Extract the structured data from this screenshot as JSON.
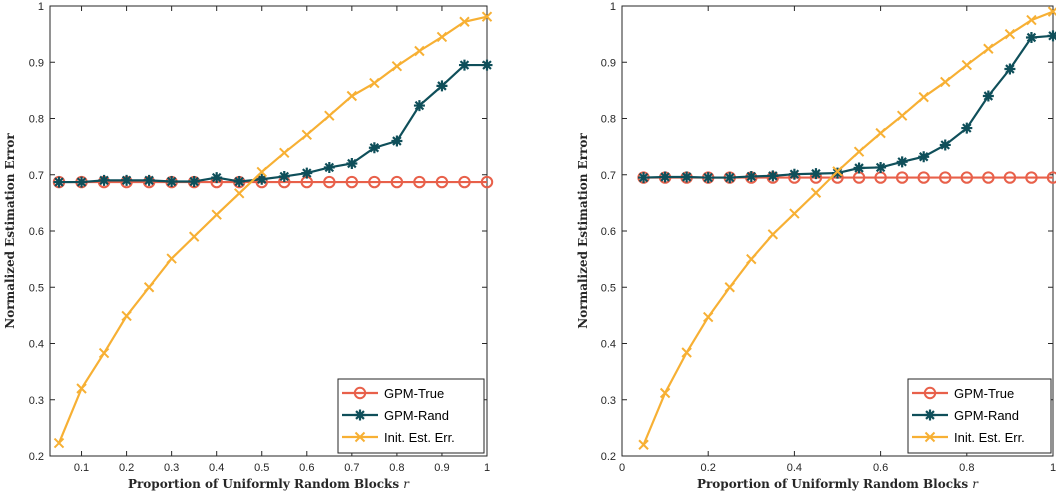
{
  "chart_data": [
    {
      "type": "line",
      "title": "",
      "xlabel": "Proportion of Uniformly Random Blocks",
      "xlabel_var": "r",
      "ylabel": "Normalized Estimation Error",
      "xlim": [
        0.03,
        1.0
      ],
      "ylim": [
        0.2,
        1.0
      ],
      "xticks": [
        0.1,
        0.2,
        0.3,
        0.4,
        0.5,
        0.6,
        0.7,
        0.8,
        0.9,
        1
      ],
      "xtick_labels": [
        "0.1",
        "0.2",
        "0.3",
        "0.4",
        "0.5",
        "0.6",
        "0.7",
        "0.8",
        "0.9",
        "1"
      ],
      "yticks": [
        0.2,
        0.3,
        0.4,
        0.5,
        0.6,
        0.7,
        0.8,
        0.9,
        1
      ],
      "ytick_labels": [
        "0.2",
        "0.3",
        "0.4",
        "0.5",
        "0.6",
        "0.7",
        "0.8",
        "0.9",
        "1"
      ],
      "grid": false,
      "legend_position": "bottom-right",
      "x": [
        0.05,
        0.1,
        0.15,
        0.2,
        0.25,
        0.3,
        0.35,
        0.4,
        0.45,
        0.5,
        0.55,
        0.6,
        0.65,
        0.7,
        0.75,
        0.8,
        0.85,
        0.9,
        0.95,
        1.0
      ],
      "series": [
        {
          "name": "GPM-True",
          "marker": "circle",
          "color": "#e8604a",
          "values": [
            0.687,
            0.687,
            0.687,
            0.687,
            0.687,
            0.687,
            0.687,
            0.687,
            0.687,
            0.687,
            0.687,
            0.687,
            0.687,
            0.687,
            0.687,
            0.687,
            0.687,
            0.687,
            0.687,
            0.687
          ]
        },
        {
          "name": "GPM-Rand",
          "marker": "star",
          "color": "#0f4f5a",
          "values": [
            0.687,
            0.687,
            0.69,
            0.69,
            0.69,
            0.688,
            0.688,
            0.695,
            0.688,
            0.692,
            0.697,
            0.703,
            0.713,
            0.72,
            0.748,
            0.76,
            0.823,
            0.858,
            0.895,
            0.895
          ]
        },
        {
          "name": "Init. Est. Err.",
          "marker": "x",
          "color": "#f7b034",
          "values": [
            0.223,
            0.32,
            0.383,
            0.449,
            0.5,
            0.551,
            0.59,
            0.629,
            0.667,
            0.705,
            0.739,
            0.771,
            0.805,
            0.84,
            0.863,
            0.893,
            0.92,
            0.945,
            0.972,
            0.981
          ]
        }
      ]
    },
    {
      "type": "line",
      "title": "",
      "xlabel": "Proportion of Uniformly Random Blocks",
      "xlabel_var": "r",
      "ylabel": "Normalized Estimation Error",
      "xlim": [
        0,
        1.0
      ],
      "ylim": [
        0.2,
        1.0
      ],
      "xticks": [
        0,
        0.2,
        0.4,
        0.6,
        0.8,
        1
      ],
      "xtick_labels": [
        "0",
        "0.2",
        "0.4",
        "0.6",
        "0.8",
        "1"
      ],
      "yticks": [
        0.2,
        0.3,
        0.4,
        0.5,
        0.6,
        0.7,
        0.8,
        0.9,
        1
      ],
      "ytick_labels": [
        "0.2",
        "0.3",
        "0.4",
        "0.5",
        "0.6",
        "0.7",
        "0.8",
        "0.9",
        "1"
      ],
      "grid": false,
      "legend_position": "bottom-right",
      "x": [
        0.05,
        0.1,
        0.15,
        0.2,
        0.25,
        0.3,
        0.35,
        0.4,
        0.45,
        0.5,
        0.55,
        0.6,
        0.65,
        0.7,
        0.75,
        0.8,
        0.85,
        0.9,
        0.95,
        1.0
      ],
      "series": [
        {
          "name": "GPM-True",
          "marker": "circle",
          "color": "#e8604a",
          "values": [
            0.695,
            0.695,
            0.695,
            0.695,
            0.695,
            0.695,
            0.695,
            0.695,
            0.695,
            0.695,
            0.695,
            0.695,
            0.695,
            0.695,
            0.695,
            0.695,
            0.695,
            0.695,
            0.695,
            0.695
          ]
        },
        {
          "name": "GPM-Rand",
          "marker": "star",
          "color": "#0f4f5a",
          "values": [
            0.695,
            0.696,
            0.696,
            0.695,
            0.695,
            0.697,
            0.698,
            0.701,
            0.702,
            0.703,
            0.712,
            0.713,
            0.723,
            0.732,
            0.753,
            0.783,
            0.84,
            0.888,
            0.944,
            0.947
          ]
        },
        {
          "name": "Init. Est. Err.",
          "marker": "x",
          "color": "#f7b034",
          "values": [
            0.22,
            0.312,
            0.384,
            0.447,
            0.5,
            0.55,
            0.594,
            0.631,
            0.668,
            0.706,
            0.741,
            0.774,
            0.805,
            0.838,
            0.865,
            0.895,
            0.924,
            0.95,
            0.975,
            0.99
          ]
        }
      ]
    }
  ]
}
